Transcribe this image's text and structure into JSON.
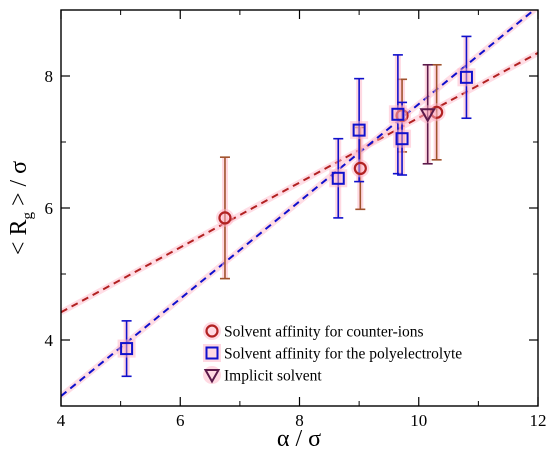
{
  "chart_data": {
    "type": "scatter",
    "xlabel": "α / σ",
    "ylabel_parts": [
      "< R",
      "g",
      " > / σ"
    ],
    "xlim": [
      4,
      12
    ],
    "ylim": [
      3.0,
      9.0
    ],
    "xticks": [
      "4",
      "6",
      "8",
      "10",
      "12"
    ],
    "yticks": [
      "4",
      "6",
      "8"
    ],
    "xtick_values": [
      4,
      6,
      8,
      10,
      12
    ],
    "ytick_values": [
      4,
      6,
      8
    ],
    "xminor_values": [
      5,
      7,
      9,
      11
    ],
    "yminor_values": [
      3,
      5,
      7
    ],
    "legend_position": "bottom-right",
    "series": [
      {
        "name": "Solvent affinity for counter-ions",
        "marker": "circle",
        "color": "#b22222",
        "err_color": "#a0522d",
        "points": [
          {
            "x": 6.75,
            "y": 5.85,
            "err": 0.92
          },
          {
            "x": 9.02,
            "y": 6.6,
            "err": 0.62
          },
          {
            "x": 9.72,
            "y": 7.4,
            "err": 0.55
          },
          {
            "x": 10.3,
            "y": 7.45,
            "err": 0.72
          }
        ],
        "fit": {
          "x": [
            4,
            12
          ],
          "y": [
            4.42,
            8.35
          ],
          "color": "#b22222"
        }
      },
      {
        "name": "Solvent affinity for the polyelectrolyte",
        "marker": "square",
        "color": "#1010cc",
        "err_color": "#1010cc",
        "points": [
          {
            "x": 5.1,
            "y": 3.87,
            "err": 0.42
          },
          {
            "x": 8.65,
            "y": 6.45,
            "err": 0.6
          },
          {
            "x": 9.0,
            "y": 7.18,
            "err": 0.78
          },
          {
            "x": 9.65,
            "y": 7.42,
            "err": 0.9
          },
          {
            "x": 9.72,
            "y": 7.05,
            "err": 0.55
          },
          {
            "x": 10.8,
            "y": 7.98,
            "err": 0.62
          }
        ],
        "fit": {
          "x": [
            4,
            12
          ],
          "y": [
            3.15,
            9.05
          ],
          "color": "#1010cc"
        }
      },
      {
        "name": "Implicit solvent",
        "marker": "triangle-down",
        "color": "#5c1a4a",
        "err_color": "#5c1a4a",
        "points": [
          {
            "x": 10.15,
            "y": 7.42,
            "err": 0.75
          }
        ]
      }
    ]
  }
}
